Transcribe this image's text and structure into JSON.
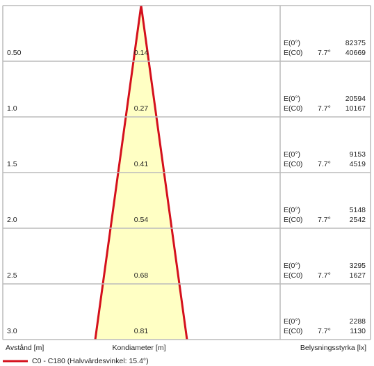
{
  "rows": [
    {
      "distance": "0.50",
      "diameter": "0.14",
      "e0_label": "E(0°)",
      "ec0_label": "E(C0)",
      "angle": "7.7°",
      "e0": "82375",
      "ec0": "40669"
    },
    {
      "distance": "1.0",
      "diameter": "0.27",
      "e0_label": "E(0°)",
      "ec0_label": "E(C0)",
      "angle": "7.7°",
      "e0": "20594",
      "ec0": "10167"
    },
    {
      "distance": "1.5",
      "diameter": "0.41",
      "e0_label": "E(0°)",
      "ec0_label": "E(C0)",
      "angle": "7.7°",
      "e0": "9153",
      "ec0": "4519"
    },
    {
      "distance": "2.0",
      "diameter": "0.54",
      "e0_label": "E(0°)",
      "ec0_label": "E(C0)",
      "angle": "7.7°",
      "e0": "5148",
      "ec0": "2542"
    },
    {
      "distance": "2.5",
      "diameter": "0.68",
      "e0_label": "E(0°)",
      "ec0_label": "E(C0)",
      "angle": "7.7°",
      "e0": "3295",
      "ec0": "1627"
    },
    {
      "distance": "3.0",
      "diameter": "0.81",
      "e0_label": "E(0°)",
      "ec0_label": "E(C0)",
      "angle": "7.7°",
      "e0": "2288",
      "ec0": "1130"
    }
  ],
  "footer": {
    "distance_label": "Avstånd [m]",
    "diameter_label": "Kondiameter [m]",
    "illuminance_label": "Belysningsstyrka [lx]"
  },
  "legend": {
    "label": "C0 - C180 (Halvvärdesvinkel: 15.4°)"
  }
}
